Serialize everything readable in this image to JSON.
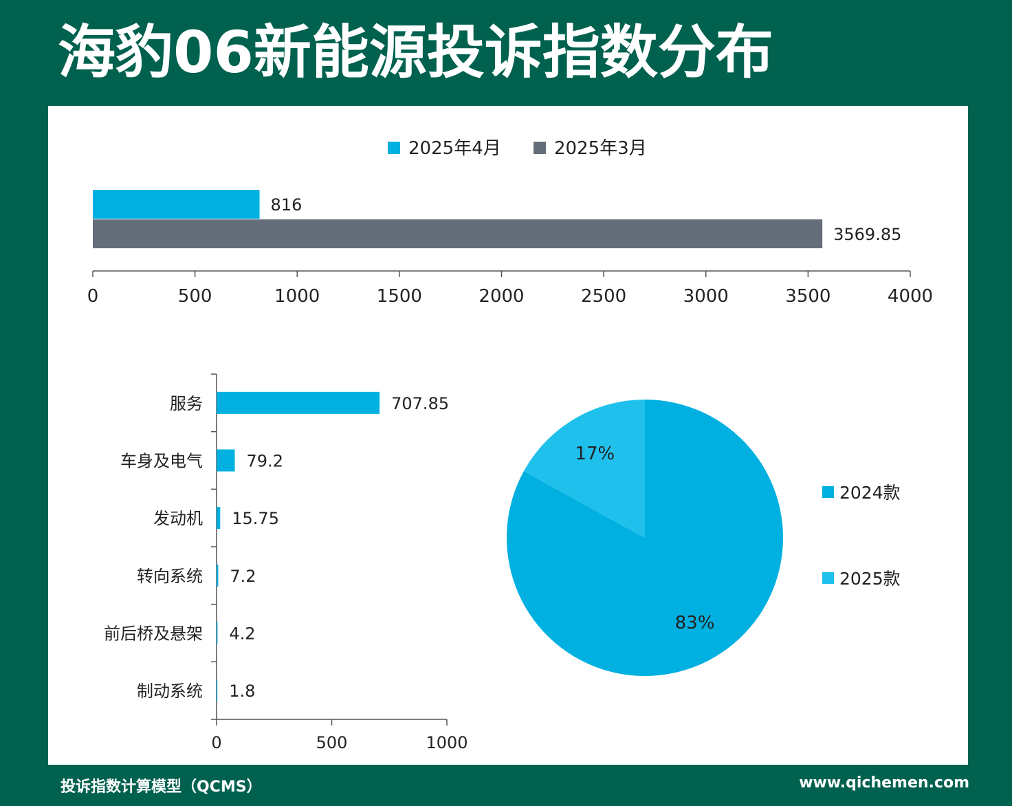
{
  "header": {
    "title": "海豹06新能源投诉指数分布"
  },
  "footer": {
    "left": "投诉指数计算模型（QCMS）",
    "right": "www.qichemen.com"
  },
  "colors": {
    "background": "#00614f",
    "blue": "#00b0e0",
    "gray": "#646e7a",
    "light_blue": "#1fc1ec"
  },
  "chart_data": [
    {
      "type": "bar",
      "orientation": "horizontal",
      "series": [
        {
          "name": "2025年4月",
          "values": [
            816
          ],
          "color": "#00b0e0"
        },
        {
          "name": "2025年3月",
          "values": [
            3569.85
          ],
          "color": "#646e7a"
        }
      ],
      "value_labels": [
        "816",
        "3569.85"
      ],
      "xlim": [
        0,
        4000
      ],
      "ticks": [
        "0",
        "500",
        "1000",
        "1500",
        "2000",
        "2500",
        "3000",
        "3500",
        "4000"
      ],
      "legend": "top"
    },
    {
      "type": "bar",
      "orientation": "horizontal",
      "categories": [
        "服务",
        "车身及电气",
        "发动机",
        "转向系统",
        "前后桥及悬架",
        "制动系统"
      ],
      "values": [
        707.85,
        79.2,
        15.75,
        7.2,
        4.2,
        1.8
      ],
      "value_labels": [
        "707.85",
        "79.2",
        "15.75",
        "7.2",
        "4.2",
        "1.8"
      ],
      "xlim": [
        0,
        1000
      ],
      "ticks": [
        "0",
        "500",
        "1000"
      ],
      "color": "#00b0e0"
    },
    {
      "type": "pie",
      "slices": [
        {
          "name": "2024款",
          "value": 83,
          "label": "83%",
          "color": "#00b0e0"
        },
        {
          "name": "2025款",
          "value": 17,
          "label": "17%",
          "color": "#1fc1ec"
        }
      ],
      "legend": "right"
    }
  ]
}
